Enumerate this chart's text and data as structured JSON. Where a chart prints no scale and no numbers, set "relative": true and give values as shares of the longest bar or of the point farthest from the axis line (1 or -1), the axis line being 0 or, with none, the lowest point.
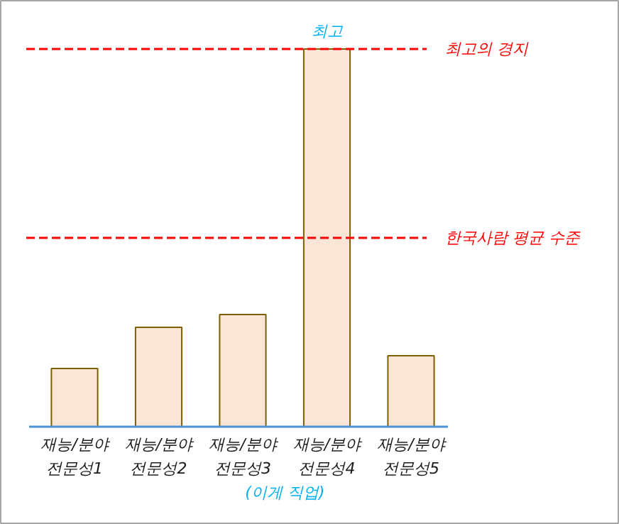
{
  "chart_data": {
    "type": "bar",
    "relative": true,
    "xlabel": "(이게 직업)",
    "categories": [
      "재능/분야\n전문성1",
      "재능/분야\n전문성2",
      "재능/분야\n전문성3",
      "재능/분야\n전문성4",
      "재능/분야\n전문성5"
    ],
    "values": [
      0.154,
      0.263,
      0.297,
      1,
      0.188
    ],
    "color": "#fbe5d6",
    "ref_lines": [
      {
        "axis": "y",
        "value": 1,
        "label": "최고의 경지",
        "color": "#ff0000",
        "line_style": "dashed"
      },
      {
        "axis": "y",
        "value": 0.5,
        "label": "한국사람 평균 수준",
        "color": "#ff0000",
        "line_style": "dashed"
      }
    ],
    "annotations": [
      {
        "text": "최고",
        "x": "재능/분야\n전문성4",
        "y": 1
      }
    ]
  }
}
